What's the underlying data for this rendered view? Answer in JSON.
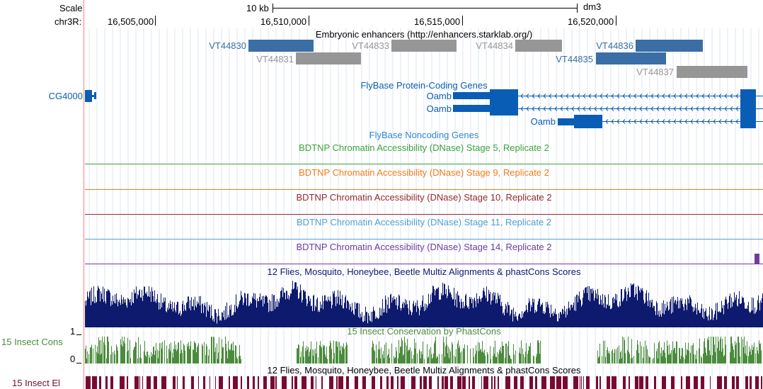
{
  "ruler": {
    "scale_label": "Scale",
    "scale_bar_text": "10 kb",
    "assembly": "dm3",
    "chrom_label": "chr3R:",
    "ticks": [
      "16,505,000",
      "16,510,000",
      "16,515,000",
      "16,520,000"
    ]
  },
  "colors": {
    "enhancer_blue": "#3a6ea5",
    "enhancer_gray": "#969696",
    "gene_blue": "#0a5db4",
    "noncoding_blue": "#2d88d8",
    "stage5": "#3aa33a",
    "stage9": "#f07d1e",
    "stage10": "#962832",
    "stage11": "#50a0d2",
    "stage14": "#6e3ca0",
    "multiz": "#0e1a6e",
    "phastcons": "#4a8c3c",
    "elements": "#780a32"
  },
  "enhancers": {
    "title": "Embryonic enhancers (http://enhancers.starklab.org/)",
    "items": [
      {
        "name": "VT44830",
        "color": "blue"
      },
      {
        "name": "VT44831",
        "color": "gray"
      },
      {
        "name": "VT44833",
        "color": "gray"
      },
      {
        "name": "VT44834",
        "color": "gray"
      },
      {
        "name": "VT44836",
        "color": "blue"
      },
      {
        "name": "VT44835",
        "color": "blue"
      },
      {
        "name": "VT44837",
        "color": "gray"
      }
    ]
  },
  "genes": {
    "title": "FlyBase Protein-Coding Genes",
    "left_gene": "CG4000",
    "transcripts": [
      "Oamb",
      "Oamb",
      "Oamb"
    ]
  },
  "noncoding": {
    "title": "FlyBase Noncoding Genes"
  },
  "dnase_tracks": [
    {
      "title": "BDTNP Chromatin Accessibility (DNase) Stage 5, Replicate 2",
      "color_key": "stage5"
    },
    {
      "title": "BDTNP Chromatin Accessibility (DNase) Stage 9, Replicate 2",
      "color_key": "stage9"
    },
    {
      "title": "BDTNP Chromatin Accessibility (DNase) Stage 10, Replicate 2",
      "color_key": "stage10"
    },
    {
      "title": "BDTNP Chromatin Accessibility (DNase) Stage 11, Replicate 2",
      "color_key": "stage11"
    },
    {
      "title": "BDTNP Chromatin Accessibility (DNase) Stage 14, Replicate 2",
      "color_key": "stage14"
    }
  ],
  "multiz": {
    "title": "12 Flies, Mosquito, Honeybee, Beetle Multiz Alignments & phastCons Scores"
  },
  "phastcons": {
    "title": "15 Insect Conservation by PhastCons",
    "side_label": "15 Insect Cons",
    "ymax": "1",
    "ymin": "0"
  },
  "elements": {
    "title": "12 Flies, Mosquito, Honeybee, Beetle Multiz Alignments & phastCons Scores",
    "side_label": "15 Insect El"
  }
}
